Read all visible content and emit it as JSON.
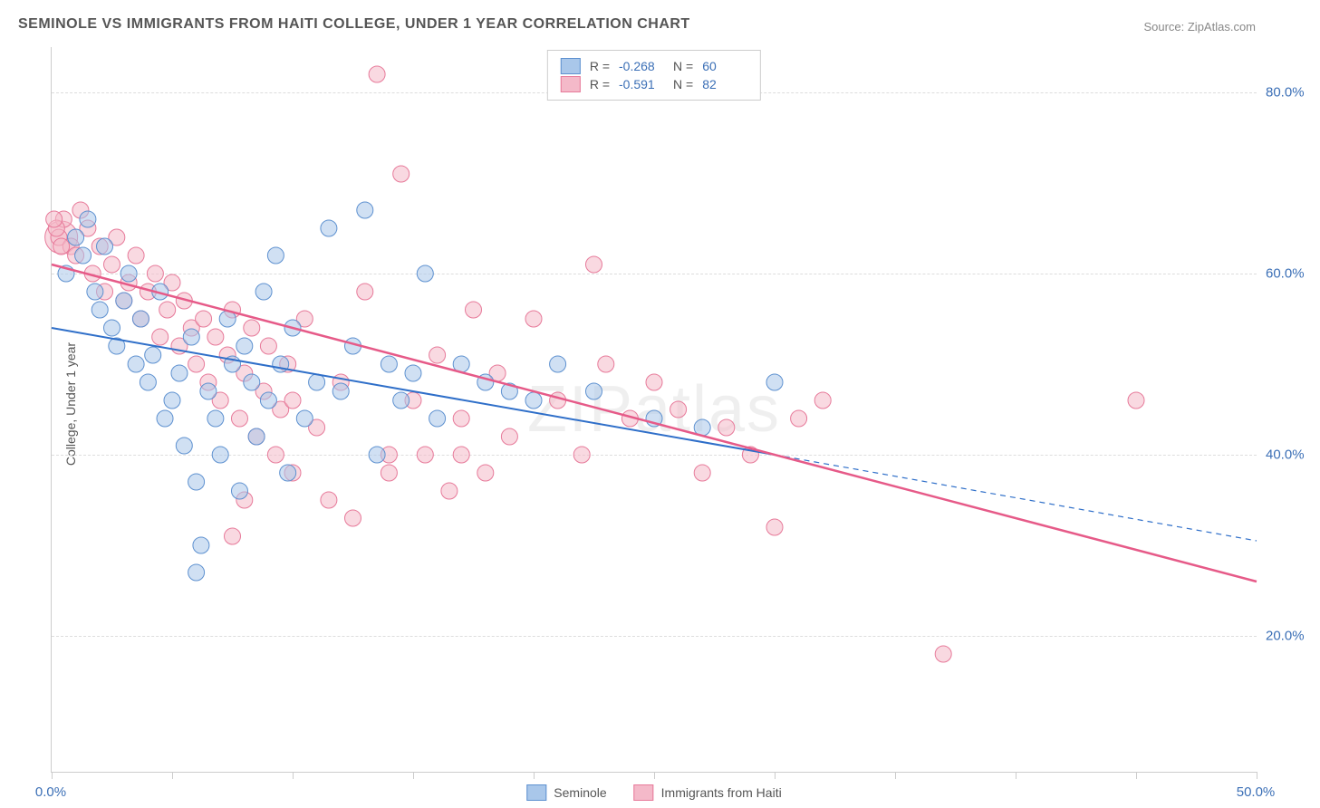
{
  "title": "SEMINOLE VS IMMIGRANTS FROM HAITI COLLEGE, UNDER 1 YEAR CORRELATION CHART",
  "source": "Source: ZipAtlas.com",
  "y_axis_title": "College, Under 1 year",
  "watermark": "ZIPatlas",
  "chart": {
    "type": "scatter-with-regression",
    "x_range": [
      0,
      50
    ],
    "y_range": [
      5,
      85
    ],
    "x_ticks": [
      0,
      5,
      10,
      15,
      20,
      25,
      30,
      35,
      40,
      45,
      50
    ],
    "x_tick_labels_shown": {
      "0": "0.0%",
      "50": "50.0%"
    },
    "y_ticks": [
      20,
      40,
      60,
      80
    ],
    "y_tick_labels": [
      "20.0%",
      "40.0%",
      "60.0%",
      "80.0%"
    ],
    "grid_color": "#dddddd",
    "axis_color": "#cccccc",
    "background": "#ffffff",
    "tick_label_color": "#3b6fb6",
    "title_color": "#555555",
    "title_fontsize": 16,
    "label_fontsize": 14,
    "tick_fontsize": 15,
    "series": [
      {
        "name": "Seminole",
        "fill": "#a9c7ea",
        "stroke": "#5e91d0",
        "fill_opacity": 0.55,
        "marker_radius": 9,
        "R": "-0.268",
        "N": "60",
        "regression": {
          "x1": 0,
          "y1": 54,
          "x2": 30,
          "y2": 40,
          "solid_until_x": 30,
          "dash_to_x": 50,
          "dash_y2": 30.5,
          "color": "#2f6fc9",
          "width": 2
        },
        "points": [
          [
            0.6,
            60
          ],
          [
            1.0,
            64
          ],
          [
            1.3,
            62
          ],
          [
            1.5,
            66
          ],
          [
            1.8,
            58
          ],
          [
            2.0,
            56
          ],
          [
            2.2,
            63
          ],
          [
            2.5,
            54
          ],
          [
            2.7,
            52
          ],
          [
            3.0,
            57
          ],
          [
            3.2,
            60
          ],
          [
            3.5,
            50
          ],
          [
            3.7,
            55
          ],
          [
            4.0,
            48
          ],
          [
            4.2,
            51
          ],
          [
            4.5,
            58
          ],
          [
            4.7,
            44
          ],
          [
            5.0,
            46
          ],
          [
            5.3,
            49
          ],
          [
            5.5,
            41
          ],
          [
            5.8,
            53
          ],
          [
            6.0,
            37
          ],
          [
            6.2,
            30
          ],
          [
            6.5,
            47
          ],
          [
            6.8,
            44
          ],
          [
            7.0,
            40
          ],
          [
            7.3,
            55
          ],
          [
            7.5,
            50
          ],
          [
            7.8,
            36
          ],
          [
            8.0,
            52
          ],
          [
            8.3,
            48
          ],
          [
            8.5,
            42
          ],
          [
            8.8,
            58
          ],
          [
            9.0,
            46
          ],
          [
            9.3,
            62
          ],
          [
            9.5,
            50
          ],
          [
            9.8,
            38
          ],
          [
            10.0,
            54
          ],
          [
            10.5,
            44
          ],
          [
            11.0,
            48
          ],
          [
            11.5,
            65
          ],
          [
            12.0,
            47
          ],
          [
            12.5,
            52
          ],
          [
            13.0,
            67
          ],
          [
            13.5,
            40
          ],
          [
            14.0,
            50
          ],
          [
            14.5,
            46
          ],
          [
            15.0,
            49
          ],
          [
            15.5,
            60
          ],
          [
            16.0,
            44
          ],
          [
            17.0,
            50
          ],
          [
            18.0,
            48
          ],
          [
            19.0,
            47
          ],
          [
            20.0,
            46
          ],
          [
            21.0,
            50
          ],
          [
            22.5,
            47
          ],
          [
            25.0,
            44
          ],
          [
            27.0,
            43
          ],
          [
            30.0,
            48
          ],
          [
            6.0,
            27
          ]
        ]
      },
      {
        "name": "Immigrants from Haiti",
        "fill": "#f4b9c9",
        "stroke": "#e77a9a",
        "fill_opacity": 0.55,
        "marker_radius": 9,
        "R": "-0.591",
        "N": "82",
        "regression": {
          "x1": 0,
          "y1": 61,
          "x2": 50,
          "y2": 26,
          "solid_until_x": 50,
          "color": "#e65a88",
          "width": 2.5
        },
        "points": [
          [
            0.3,
            64
          ],
          [
            0.5,
            66
          ],
          [
            0.8,
            63
          ],
          [
            1.0,
            62
          ],
          [
            1.2,
            67
          ],
          [
            1.5,
            65
          ],
          [
            1.7,
            60
          ],
          [
            2.0,
            63
          ],
          [
            2.2,
            58
          ],
          [
            2.5,
            61
          ],
          [
            2.7,
            64
          ],
          [
            3.0,
            57
          ],
          [
            3.2,
            59
          ],
          [
            3.5,
            62
          ],
          [
            3.7,
            55
          ],
          [
            4.0,
            58
          ],
          [
            4.3,
            60
          ],
          [
            4.5,
            53
          ],
          [
            4.8,
            56
          ],
          [
            5.0,
            59
          ],
          [
            5.3,
            52
          ],
          [
            5.5,
            57
          ],
          [
            5.8,
            54
          ],
          [
            6.0,
            50
          ],
          [
            6.3,
            55
          ],
          [
            6.5,
            48
          ],
          [
            6.8,
            53
          ],
          [
            7.0,
            46
          ],
          [
            7.3,
            51
          ],
          [
            7.5,
            56
          ],
          [
            7.8,
            44
          ],
          [
            8.0,
            49
          ],
          [
            8.3,
            54
          ],
          [
            8.5,
            42
          ],
          [
            8.8,
            47
          ],
          [
            9.0,
            52
          ],
          [
            9.3,
            40
          ],
          [
            9.5,
            45
          ],
          [
            9.8,
            50
          ],
          [
            10.0,
            38
          ],
          [
            10.5,
            55
          ],
          [
            11.0,
            43
          ],
          [
            11.5,
            35
          ],
          [
            12.0,
            48
          ],
          [
            12.5,
            33
          ],
          [
            13.0,
            58
          ],
          [
            13.5,
            82
          ],
          [
            14.0,
            38
          ],
          [
            14.5,
            71
          ],
          [
            15.0,
            46
          ],
          [
            15.5,
            40
          ],
          [
            16.0,
            51
          ],
          [
            16.5,
            36
          ],
          [
            17.0,
            44
          ],
          [
            17.5,
            56
          ],
          [
            18.0,
            38
          ],
          [
            18.5,
            49
          ],
          [
            19.0,
            42
          ],
          [
            20.0,
            55
          ],
          [
            21.0,
            46
          ],
          [
            22.0,
            40
          ],
          [
            22.5,
            61
          ],
          [
            23.0,
            50
          ],
          [
            24.0,
            44
          ],
          [
            25.0,
            48
          ],
          [
            26.0,
            45
          ],
          [
            27.0,
            38
          ],
          [
            28.0,
            43
          ],
          [
            29.0,
            40
          ],
          [
            30.0,
            32
          ],
          [
            31.0,
            44
          ],
          [
            32.0,
            46
          ],
          [
            17.0,
            40
          ],
          [
            14.0,
            40
          ],
          [
            10.0,
            46
          ],
          [
            8.0,
            35
          ],
          [
            7.5,
            31
          ],
          [
            45.0,
            46
          ],
          [
            37.0,
            18
          ],
          [
            0.2,
            65
          ],
          [
            0.4,
            63
          ],
          [
            0.1,
            66
          ]
        ],
        "extra_large_point": {
          "x": 0.4,
          "y": 64,
          "r": 18
        }
      }
    ]
  },
  "legend_top": {
    "rows": [
      {
        "swatch_fill": "#a9c7ea",
        "swatch_stroke": "#5e91d0",
        "R": "-0.268",
        "N": "60"
      },
      {
        "swatch_fill": "#f4b9c9",
        "swatch_stroke": "#e77a9a",
        "R": "-0.591",
        "N": "82"
      }
    ],
    "r_label": "R =",
    "n_label": "N ="
  },
  "legend_bottom": {
    "items": [
      {
        "swatch_fill": "#a9c7ea",
        "swatch_stroke": "#5e91d0",
        "label": "Seminole"
      },
      {
        "swatch_fill": "#f4b9c9",
        "swatch_stroke": "#e77a9a",
        "label": "Immigrants from Haiti"
      }
    ]
  }
}
